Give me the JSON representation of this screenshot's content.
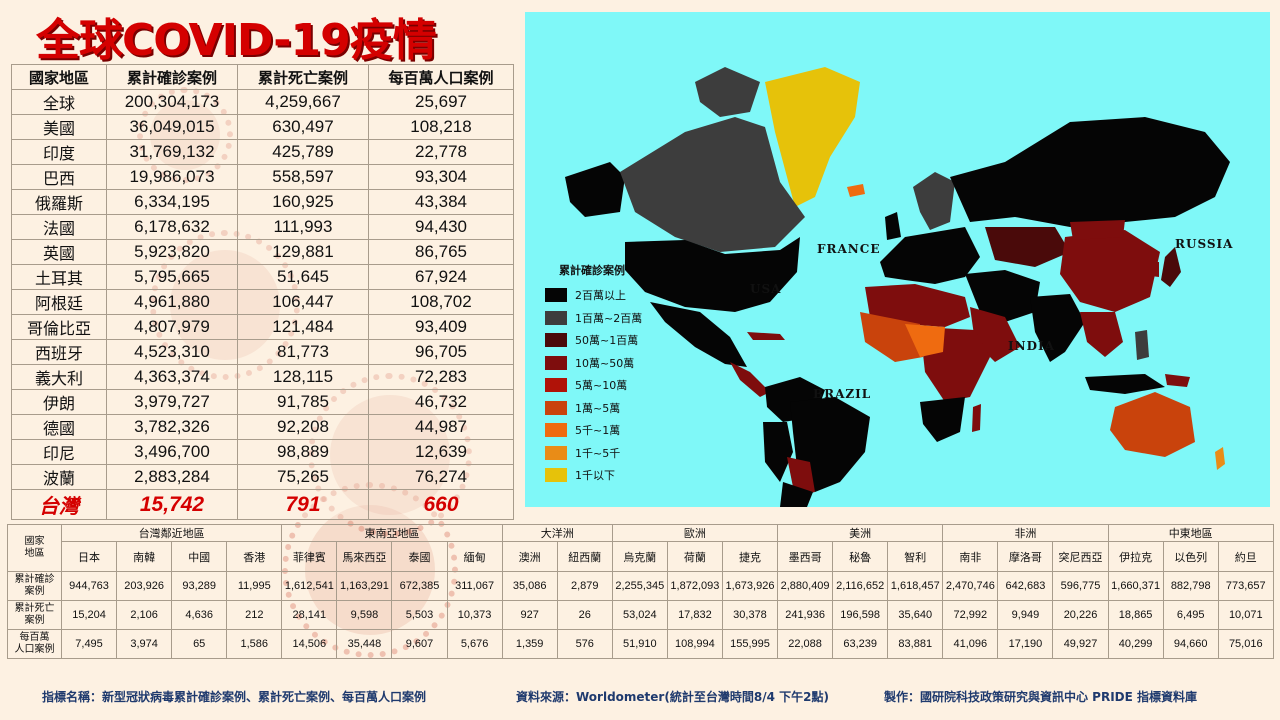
{
  "title": "全球COVID-19疫情",
  "main_table": {
    "headers": [
      "國家地區",
      "累計確診案例",
      "累計死亡案例",
      "每百萬人口案例"
    ],
    "rows": [
      [
        "全球",
        "200,304,173",
        "4,259,667",
        "25,697"
      ],
      [
        "美國",
        "36,049,015",
        "630,497",
        "108,218"
      ],
      [
        "印度",
        "31,769,132",
        "425,789",
        "22,778"
      ],
      [
        "巴西",
        "19,986,073",
        "558,597",
        "93,304"
      ],
      [
        "俄羅斯",
        "6,334,195",
        "160,925",
        "43,384"
      ],
      [
        "法國",
        "6,178,632",
        "111,993",
        "94,430"
      ],
      [
        "英國",
        "5,923,820",
        "129,881",
        "86,765"
      ],
      [
        "土耳其",
        "5,795,665",
        "51,645",
        "67,924"
      ],
      [
        "阿根廷",
        "4,961,880",
        "106,447",
        "108,702"
      ],
      [
        "哥倫比亞",
        "4,807,979",
        "121,484",
        "93,409"
      ],
      [
        "西班牙",
        "4,523,310",
        "81,773",
        "96,705"
      ],
      [
        "義大利",
        "4,363,374",
        "128,115",
        "72,283"
      ],
      [
        "伊朗",
        "3,979,727",
        "91,785",
        "46,732"
      ],
      [
        "德國",
        "3,782,326",
        "92,208",
        "44,987"
      ],
      [
        "印尼",
        "3,496,700",
        "98,889",
        "12,639"
      ],
      [
        "波蘭",
        "2,883,284",
        "75,265",
        "76,274"
      ]
    ],
    "taiwan_row": [
      "台灣",
      "15,742",
      "791",
      "660"
    ]
  },
  "map": {
    "background": "#7ff8f8",
    "labels": {
      "france": "FRANCE",
      "russia": "RUSSIA",
      "usa": "USA",
      "india": "INDIA",
      "brazil": "BRAZIL"
    },
    "legend_title": "累計確診案例",
    "legend": [
      {
        "label": "2百萬以上",
        "color": "#050505"
      },
      {
        "label": "1百萬~2百萬",
        "color": "#3d3d3d"
      },
      {
        "label": "50萬~1百萬",
        "color": "#4a0a0a"
      },
      {
        "label": "10萬~50萬",
        "color": "#7e0d0d"
      },
      {
        "label": "5萬~10萬",
        "color": "#b01208"
      },
      {
        "label": "1萬~5萬",
        "color": "#c9430c"
      },
      {
        "label": "5千~1萬",
        "color": "#ef6b10"
      },
      {
        "label": "1千~5千",
        "color": "#e98c17"
      },
      {
        "label": "1千以下",
        "color": "#e6c20a"
      }
    ]
  },
  "bottom_table": {
    "corner_label": "國家\n地區",
    "regions": [
      {
        "name": "台灣鄰近地區",
        "span": 4
      },
      {
        "name": "東南亞地區",
        "span": 4
      },
      {
        "name": "大洋洲",
        "span": 2
      },
      {
        "name": "歐洲",
        "span": 3
      },
      {
        "name": "美洲",
        "span": 3
      },
      {
        "name": "非洲",
        "span": 3
      },
      {
        "name": "中東地區",
        "span": 3
      }
    ],
    "countries": [
      "日本",
      "南韓",
      "中國",
      "香港",
      "菲律賓",
      "馬來西亞",
      "泰國",
      "緬甸",
      "澳洲",
      "紐西蘭",
      "烏克蘭",
      "荷蘭",
      "捷克",
      "墨西哥",
      "秘魯",
      "智利",
      "南非",
      "摩洛哥",
      "突尼西亞",
      "伊拉克",
      "以色列",
      "約旦"
    ],
    "rows": [
      {
        "label": "累計確診\n案例",
        "values": [
          "944,763",
          "203,926",
          "93,289",
          "11,995",
          "1,612,541",
          "1,163,291",
          "672,385",
          "311,067",
          "35,086",
          "2,879",
          "2,255,345",
          "1,872,093",
          "1,673,926",
          "2,880,409",
          "2,116,652",
          "1,618,457",
          "2,470,746",
          "642,683",
          "596,775",
          "1,660,371",
          "882,798",
          "773,657"
        ]
      },
      {
        "label": "累計死亡\n案例",
        "values": [
          "15,204",
          "2,106",
          "4,636",
          "212",
          "28,141",
          "9,598",
          "5,503",
          "10,373",
          "927",
          "26",
          "53,024",
          "17,832",
          "30,378",
          "241,936",
          "196,598",
          "35,640",
          "72,992",
          "9,949",
          "20,226",
          "18,865",
          "6,495",
          "10,071"
        ]
      },
      {
        "label": "每百萬\n人口案例",
        "values": [
          "7,495",
          "3,974",
          "65",
          "1,586",
          "14,506",
          "35,448",
          "9,607",
          "5,676",
          "1,359",
          "576",
          "51,910",
          "108,994",
          "155,995",
          "22,088",
          "63,239",
          "83,881",
          "41,096",
          "17,190",
          "49,927",
          "40,299",
          "94,660",
          "75,016"
        ]
      }
    ]
  },
  "footer": {
    "indicator": "指標名稱：新型冠狀病毒累計確診案例、累計死亡案例、每百萬人口案例",
    "source": "資料來源：Worldometer(統計至台灣時間8/4 下午2點)",
    "producer": "製作：國研院科技政策研究與資訊中心 PRIDE 指標資料庫"
  },
  "colors": {
    "title": "#d40000",
    "taiwan_row": "#d40000",
    "footer": "#1f3a6e",
    "page_background": "#fdf1e2"
  }
}
